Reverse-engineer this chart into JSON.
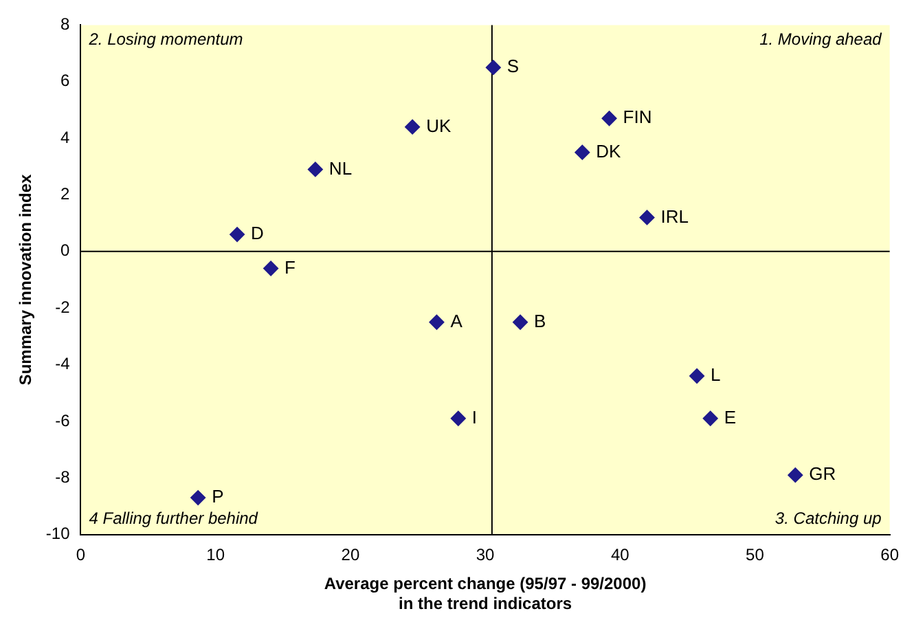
{
  "chart_data": {
    "type": "scatter",
    "xlabel": "Average percent change (95/97 - 99/2000)\nin the trend indicators",
    "ylabel": "Summary innovation index",
    "series": [
      {
        "color": "#1f1a8c",
        "x": [
          30.6,
          39.2,
          37.2,
          24.6,
          17.4,
          11.6,
          14.1,
          42.0,
          26.4,
          32.6,
          28.0,
          45.7,
          46.7,
          53.0,
          8.7
        ],
        "values": [
          6.5,
          4.7,
          3.5,
          4.4,
          2.9,
          0.6,
          -0.6,
          1.2,
          -2.5,
          -2.5,
          -5.9,
          -4.4,
          -5.9,
          -7.9,
          -8.7
        ]
      }
    ],
    "xlim": [
      0,
      60
    ],
    "xticks": [
      0,
      10,
      20,
      30,
      40,
      50,
      60
    ],
    "ylim": [
      -10,
      8
    ],
    "yticks": [
      -10,
      -8,
      -6,
      -4,
      -2,
      0,
      2,
      4,
      6,
      8
    ],
    "marker": "diamond",
    "grid": false,
    "legend": false,
    "ref_lines": [
      {
        "axis": "x",
        "value": 30.5,
        "color": "#000000"
      },
      {
        "axis": "y",
        "value": 0,
        "color": "#000000"
      }
    ],
    "annotations": [
      "2. Losing momentum",
      "1. Moving ahead",
      "4 Falling further behind",
      "3. Catching up",
      {
        "text": "S",
        "x": 30.6,
        "y": 6.5
      },
      {
        "text": "FIN",
        "x": 39.2,
        "y": 4.7
      },
      {
        "text": "DK",
        "x": 37.2,
        "y": 3.5
      },
      {
        "text": "UK",
        "x": 24.6,
        "y": 4.4
      },
      {
        "text": "NL",
        "x": 17.4,
        "y": 2.9
      },
      {
        "text": "D",
        "x": 11.6,
        "y": 0.6
      },
      {
        "text": "F",
        "x": 14.1,
        "y": -0.6
      },
      {
        "text": "IRL",
        "x": 42.0,
        "y": 1.2
      },
      {
        "text": "A",
        "x": 26.4,
        "y": -2.5
      },
      {
        "text": "B",
        "x": 32.6,
        "y": -2.5
      },
      {
        "text": "I",
        "x": 28.0,
        "y": -5.9
      },
      {
        "text": "L",
        "x": 45.7,
        "y": -4.4
      },
      {
        "text": "E",
        "x": 46.7,
        "y": -5.9
      },
      {
        "text": "GR",
        "x": 53.0,
        "y": -7.9
      },
      {
        "text": "P",
        "x": 8.7,
        "y": -8.7
      }
    ]
  }
}
